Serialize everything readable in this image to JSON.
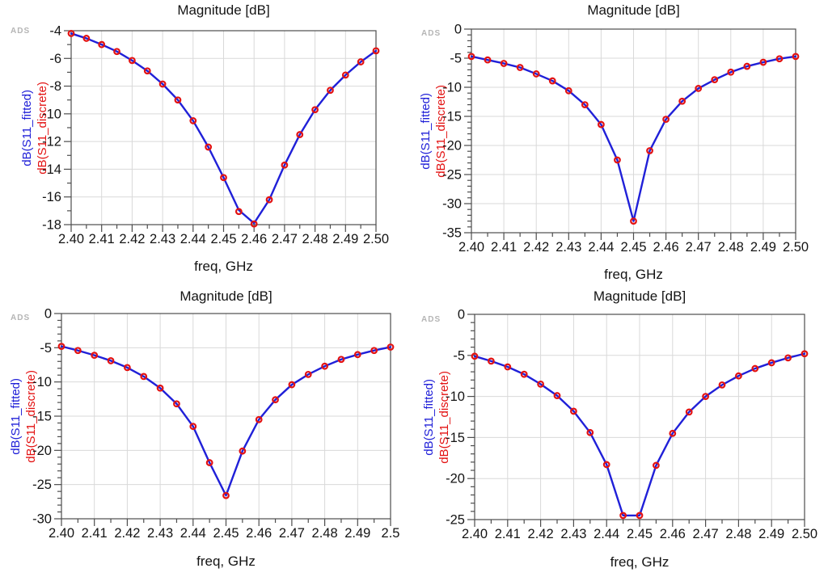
{
  "figure": {
    "watermark": "ADS",
    "colors": {
      "fitted_line": "#2020d8",
      "discrete_marker": "#e31212",
      "grid": "#d9d9d9",
      "axis": "#4d4d4d",
      "tick_text": "#141414",
      "title_text": "#141414",
      "ylabel_fitted": "#2020d8",
      "ylabel_discrete": "#e31212",
      "watermark": "#b5b5b5"
    }
  },
  "chart_data": [
    {
      "type": "line",
      "title": "Magnitude [dB]",
      "xlabel": "freq, GHz",
      "ylabel_fitted": "dB(S11_fitted)",
      "ylabel_discrete": "dB(S11_discrete)",
      "xlim": [
        2.4,
        2.5
      ],
      "ylim": [
        -18,
        -4
      ],
      "x_tick_step": 0.01,
      "x_minor_step": 0.005,
      "y_tick_step": 2,
      "y_minor_step": 1,
      "grid": true,
      "x_ticklabels": [
        "2.40",
        "2.41",
        "2.42",
        "2.43",
        "2.44",
        "2.45",
        "2.46",
        "2.47",
        "2.48",
        "2.49",
        "2.50"
      ],
      "y_ticklabels": [
        "-4",
        "-6",
        "-8",
        "-10",
        "-12",
        "-14",
        "-16",
        "-18"
      ],
      "x": [
        2.4,
        2.405,
        2.41,
        2.415,
        2.42,
        2.425,
        2.43,
        2.435,
        2.44,
        2.445,
        2.45,
        2.455,
        2.46,
        2.465,
        2.47,
        2.475,
        2.48,
        2.485,
        2.49,
        2.495,
        2.5
      ],
      "series": [
        {
          "name": "dB(S11_fitted)",
          "style": "line",
          "values": [
            -4.2,
            -4.55,
            -5.0,
            -5.5,
            -6.15,
            -6.9,
            -7.85,
            -9.0,
            -10.5,
            -12.4,
            -14.6,
            -16.95,
            -17.9,
            -16.2,
            -13.7,
            -11.5,
            -9.7,
            -8.3,
            -7.2,
            -6.25,
            -5.45
          ]
        },
        {
          "name": "dB(S11_discrete)",
          "style": "scatter",
          "values": [
            -4.2,
            -4.55,
            -5.0,
            -5.5,
            -6.15,
            -6.9,
            -7.85,
            -9.0,
            -10.5,
            -12.4,
            -14.6,
            -17.05,
            -17.95,
            -16.2,
            -13.7,
            -11.5,
            -9.7,
            -8.3,
            -7.2,
            -6.25,
            -5.45
          ]
        }
      ]
    },
    {
      "type": "line",
      "title": "Magnitude [dB]",
      "xlabel": "freq, GHz",
      "ylabel_fitted": "dB(S11_fitted)",
      "ylabel_discrete": "dB(S11_discrete)",
      "xlim": [
        2.4,
        2.5
      ],
      "ylim": [
        -35,
        0
      ],
      "x_tick_step": 0.01,
      "x_minor_step": 0.005,
      "y_tick_step": 5,
      "y_minor_step": 1,
      "grid": true,
      "x_ticklabels": [
        "2.40",
        "2.41",
        "2.42",
        "2.43",
        "2.44",
        "2.45",
        "2.46",
        "2.47",
        "2.48",
        "2.49",
        "2.50"
      ],
      "y_ticklabels": [
        "0",
        "-5",
        "-10",
        "-15",
        "-20",
        "-25",
        "-30",
        "-35"
      ],
      "x": [
        2.4,
        2.405,
        2.41,
        2.415,
        2.42,
        2.425,
        2.43,
        2.435,
        2.44,
        2.445,
        2.45,
        2.455,
        2.46,
        2.465,
        2.47,
        2.475,
        2.48,
        2.485,
        2.49,
        2.495,
        2.5
      ],
      "series": [
        {
          "name": "dB(S11_fitted)",
          "style": "line",
          "values": [
            -4.7,
            -5.3,
            -5.9,
            -6.6,
            -7.7,
            -8.9,
            -10.6,
            -13.0,
            -16.4,
            -22.5,
            -33.0,
            -20.9,
            -15.5,
            -12.4,
            -10.2,
            -8.7,
            -7.4,
            -6.4,
            -5.7,
            -5.1,
            -4.7
          ]
        },
        {
          "name": "dB(S11_discrete)",
          "style": "scatter",
          "values": [
            -4.7,
            -5.3,
            -5.9,
            -6.6,
            -7.7,
            -8.9,
            -10.6,
            -13.0,
            -16.4,
            -22.5,
            -33.0,
            -20.9,
            -15.5,
            -12.4,
            -10.2,
            -8.7,
            -7.4,
            -6.4,
            -5.7,
            -5.1,
            -4.7
          ]
        }
      ]
    },
    {
      "type": "line",
      "title": "Magnitude [dB]",
      "xlabel": "freq, GHz",
      "ylabel_fitted": "dB(S11_fitted)",
      "ylabel_discrete": "dB(S11_discrete)",
      "xlim": [
        2.4,
        2.5
      ],
      "ylim": [
        -30,
        0
      ],
      "x_tick_step": 0.01,
      "x_minor_step": 0.005,
      "y_tick_step": 5,
      "y_minor_step": 1,
      "grid": true,
      "x_ticklabels": [
        "2.40",
        "2.41",
        "2.42",
        "2.43",
        "2.44",
        "2.45",
        "2.46",
        "2.47",
        "2.48",
        "2.49",
        "2.5"
      ],
      "y_ticklabels": [
        "0",
        "-5",
        "-10",
        "-15",
        "-20",
        "-25",
        "-30"
      ],
      "x": [
        2.4,
        2.405,
        2.41,
        2.415,
        2.42,
        2.425,
        2.43,
        2.435,
        2.44,
        2.445,
        2.45,
        2.455,
        2.46,
        2.465,
        2.47,
        2.475,
        2.48,
        2.485,
        2.49,
        2.495,
        2.5
      ],
      "series": [
        {
          "name": "dB(S11_fitted)",
          "style": "line",
          "values": [
            -4.8,
            -5.4,
            -6.1,
            -6.9,
            -7.9,
            -9.2,
            -10.9,
            -13.2,
            -16.5,
            -21.8,
            -26.6,
            -20.1,
            -15.5,
            -12.6,
            -10.4,
            -8.9,
            -7.7,
            -6.7,
            -6.0,
            -5.4,
            -4.9
          ]
        },
        {
          "name": "dB(S11_discrete)",
          "style": "scatter",
          "values": [
            -4.8,
            -5.4,
            -6.1,
            -6.9,
            -7.9,
            -9.2,
            -10.9,
            -13.2,
            -16.5,
            -21.8,
            -26.6,
            -20.1,
            -15.5,
            -12.6,
            -10.4,
            -8.9,
            -7.7,
            -6.7,
            -6.0,
            -5.4,
            -4.9
          ]
        }
      ]
    },
    {
      "type": "line",
      "title": "Magnitude [dB]",
      "xlabel": "freq, GHz",
      "ylabel_fitted": "dB(S11_fitted)",
      "ylabel_discrete": "dB(S11_discrete)",
      "xlim": [
        2.4,
        2.5
      ],
      "ylim": [
        -25,
        0
      ],
      "x_tick_step": 0.01,
      "x_minor_step": 0.005,
      "y_tick_step": 5,
      "y_minor_step": 1,
      "grid": true,
      "x_ticklabels": [
        "2.40",
        "2.41",
        "2.42",
        "2.43",
        "2.44",
        "2.45",
        "2.46",
        "2.47",
        "2.48",
        "2.49",
        "2.50"
      ],
      "y_ticklabels": [
        "0",
        "-5",
        "-10",
        "-15",
        "-20",
        "-25"
      ],
      "x": [
        2.4,
        2.405,
        2.41,
        2.415,
        2.42,
        2.425,
        2.43,
        2.435,
        2.44,
        2.445,
        2.45,
        2.455,
        2.46,
        2.465,
        2.47,
        2.475,
        2.48,
        2.485,
        2.49,
        2.495,
        2.5
      ],
      "series": [
        {
          "name": "dB(S11_fitted)",
          "style": "line",
          "values": [
            -5.1,
            -5.7,
            -6.4,
            -7.3,
            -8.5,
            -9.9,
            -11.8,
            -14.4,
            -18.3,
            -24.5,
            -24.5,
            -18.4,
            -14.5,
            -11.9,
            -10.0,
            -8.6,
            -7.5,
            -6.6,
            -5.9,
            -5.3,
            -4.8
          ]
        },
        {
          "name": "dB(S11_discrete)",
          "style": "scatter",
          "values": [
            -5.1,
            -5.7,
            -6.4,
            -7.3,
            -8.5,
            -9.9,
            -11.8,
            -14.4,
            -18.3,
            -24.5,
            -24.5,
            -18.4,
            -14.5,
            -11.9,
            -10.0,
            -8.6,
            -7.5,
            -6.6,
            -5.9,
            -5.3,
            -4.8
          ]
        }
      ]
    }
  ]
}
